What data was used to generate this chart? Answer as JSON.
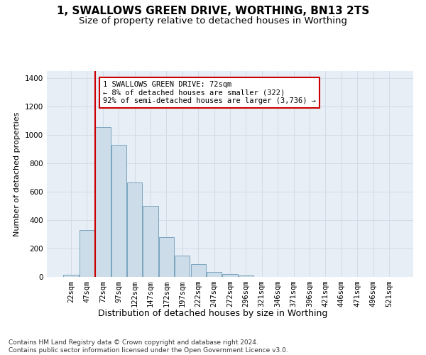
{
  "title_line1": "1, SWALLOWS GREEN DRIVE, WORTHING, BN13 2TS",
  "title_line2": "Size of property relative to detached houses in Worthing",
  "xlabel": "Distribution of detached houses by size in Worthing",
  "ylabel": "Number of detached properties",
  "categories": [
    "22sqm",
    "47sqm",
    "72sqm",
    "97sqm",
    "122sqm",
    "147sqm",
    "172sqm",
    "197sqm",
    "222sqm",
    "247sqm",
    "272sqm",
    "296sqm",
    "321sqm",
    "346sqm",
    "371sqm",
    "396sqm",
    "421sqm",
    "446sqm",
    "471sqm",
    "496sqm",
    "521sqm"
  ],
  "bar_heights": [
    15,
    328,
    1055,
    930,
    665,
    500,
    280,
    150,
    90,
    35,
    20,
    10,
    0,
    0,
    0,
    0,
    0,
    0,
    0,
    0,
    0
  ],
  "bar_color": "#ccdce8",
  "bar_edge_color": "#6a9ab8",
  "grid_color": "#d0dce8",
  "background_color": "#e8eef5",
  "vline_color": "#cc0000",
  "annotation_text": "1 SWALLOWS GREEN DRIVE: 72sqm\n← 8% of detached houses are smaller (322)\n92% of semi-detached houses are larger (3,736) →",
  "annotation_box_color": "#ffffff",
  "annotation_border_color": "#cc0000",
  "ylim": [
    0,
    1450
  ],
  "yticks": [
    0,
    200,
    400,
    600,
    800,
    1000,
    1200,
    1400
  ],
  "footer_text": "Contains HM Land Registry data © Crown copyright and database right 2024.\nContains public sector information licensed under the Open Government Licence v3.0.",
  "title_fontsize": 11,
  "subtitle_fontsize": 9.5,
  "xlabel_fontsize": 9,
  "ylabel_fontsize": 8,
  "tick_fontsize": 7.5,
  "annotation_fontsize": 7.5,
  "footer_fontsize": 6.5
}
